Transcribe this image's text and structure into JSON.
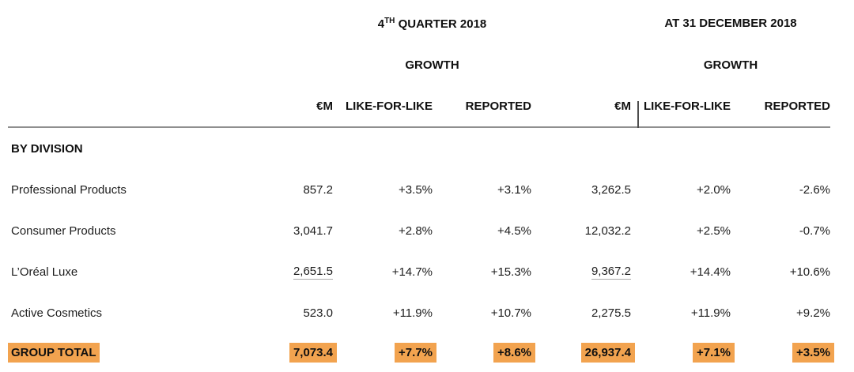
{
  "chart_data": {
    "type": "table",
    "group_headers": [
      {
        "prefix": "4",
        "sup": "TH",
        "rest": " QUARTER 2018",
        "subheader": "GROWTH"
      },
      {
        "title": "AT 31 DECEMBER 2018",
        "subheader": "GROWTH"
      }
    ],
    "columns": [
      "€M",
      "LIKE-FOR-LIKE",
      "REPORTED",
      "€M",
      "LIKE-FOR-LIKE",
      "REPORTED"
    ],
    "section_label": "BY DIVISION",
    "rows": [
      {
        "label": "Professional Products",
        "values": [
          "857.2",
          "+3.5%",
          "+3.1%",
          "3,262.5",
          "+2.0%",
          "-2.6%"
        ]
      },
      {
        "label": "Consumer Products",
        "values": [
          "3,041.7",
          "+2.8%",
          "+4.5%",
          "12,032.2",
          "+2.5%",
          "-0.7%"
        ]
      },
      {
        "label": "L’Oréal Luxe",
        "values": [
          "2,651.5",
          "+14.7%",
          "+15.3%",
          "9,367.2",
          "+14.4%",
          "+10.6%"
        ]
      },
      {
        "label": "Active Cosmetics",
        "values": [
          "523.0",
          "+11.9%",
          "+10.7%",
          "2,275.5",
          "+11.9%",
          "+9.2%"
        ]
      }
    ],
    "total_row": {
      "label": "GROUP TOTAL",
      "values": [
        "7,073.4",
        "+7.7%",
        "+8.6%",
        "26,937.4",
        "+7.1%",
        "+3.5%"
      ]
    }
  },
  "colors": {
    "highlight": "#f2a34f",
    "rule_gray": "#8f8f8f"
  }
}
